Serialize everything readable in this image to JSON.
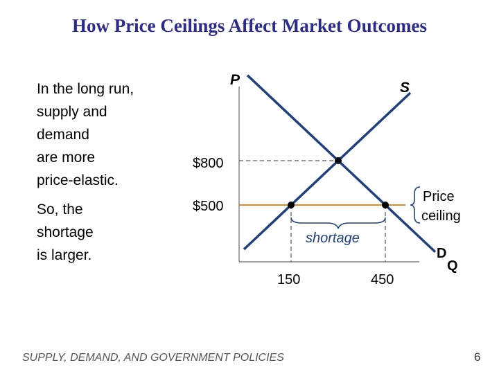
{
  "title": "How Price Ceilings Affect Market Outcomes",
  "left_text": {
    "para1": [
      "In the long run,",
      "supply and",
      "demand",
      "are more",
      "price-elastic."
    ],
    "para2": [
      "So, the",
      "shortage",
      "is larger."
    ]
  },
  "footer": "SUPPLY, DEMAND, AND GOVERNMENT POLICIES",
  "page_number": "6",
  "colors": {
    "title": "#2b2b8c",
    "curves": "#1f3f7f",
    "ceiling": "#e58a1f",
    "dashed": "#333333"
  },
  "chart_data": {
    "type": "line",
    "axes": {
      "y_label": "P",
      "x_label": "Q"
    },
    "curves": [
      {
        "name": "S",
        "points": [
          [
            150,
            500
          ],
          [
            300,
            800
          ]
        ]
      },
      {
        "name": "D",
        "points": [
          [
            300,
            800
          ],
          [
            450,
            500
          ]
        ]
      }
    ],
    "price_ticks": [
      {
        "label": "$800",
        "value": 800
      },
      {
        "label": "$500",
        "value": 500
      }
    ],
    "quantity_ticks": [
      {
        "label": "150",
        "value": 150
      },
      {
        "label": "450",
        "value": 450
      }
    ],
    "equilibrium": {
      "q": 300,
      "p": 800
    },
    "price_ceiling": {
      "value": 500,
      "label_lines": [
        "Price",
        "ceiling"
      ]
    },
    "points": [
      {
        "q": 150,
        "p": 500
      },
      {
        "q": 450,
        "p": 500
      },
      {
        "q": 300,
        "p": 800
      }
    ],
    "shortage": {
      "label": "shortage",
      "from_q": 150,
      "to_q": 450
    }
  }
}
